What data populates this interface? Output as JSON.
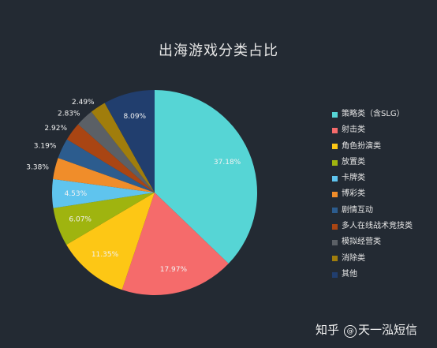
{
  "chart_data": {
    "type": "pie",
    "title": "出海游戏分类占比",
    "slices": [
      {
        "label": "策略类（含SLG）",
        "value": 37.18,
        "value_label": "37.18%",
        "color": "#56d5d5"
      },
      {
        "label": "射击类",
        "value": 17.97,
        "value_label": "17.97%",
        "color": "#f56b6b"
      },
      {
        "label": "角色扮演类",
        "value": 11.35,
        "value_label": "11.35%",
        "color": "#fdc715"
      },
      {
        "label": "放置类",
        "value": 6.07,
        "value_label": "6.07%",
        "color": "#9fb40f"
      },
      {
        "label": "卡牌类",
        "value": 4.53,
        "value_label": "4.53%",
        "color": "#5fc4ee"
      },
      {
        "label": "博彩类",
        "value": 3.38,
        "value_label": "3.38%",
        "color": "#f08d2a"
      },
      {
        "label": "剧情互动",
        "value": 3.19,
        "value_label": "3.19%",
        "color": "#2c5c8e"
      },
      {
        "label": "多人在线战术竞技类",
        "value": 2.92,
        "value_label": "2.92%",
        "color": "#a94513"
      },
      {
        "label": "模拟经营类",
        "value": 2.83,
        "value_label": "2.83%",
        "color": "#5b6066"
      },
      {
        "label": "消除类",
        "value": 2.49,
        "value_label": "2.49%",
        "color": "#a07d0c"
      },
      {
        "label": "其他",
        "value": 8.09,
        "value_label": "8.09%",
        "color": "#213e6e"
      }
    ],
    "start_angle": "12 o'clock",
    "direction": "clockwise",
    "legend_position": "right"
  },
  "watermark": {
    "prefix": "知乎",
    "icon": "at-icon",
    "author": "天一泓短信"
  }
}
